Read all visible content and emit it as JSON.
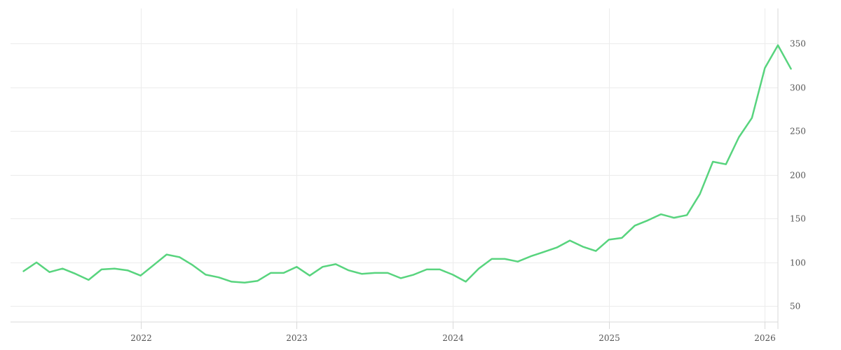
{
  "chart_data": {
    "type": "line",
    "title": "",
    "xlabel": "",
    "ylabel": "",
    "x_tick_labels": [
      "2022",
      "2023",
      "2024",
      "2025",
      "2026"
    ],
    "y_tick_labels": [
      "50",
      "100",
      "150",
      "200",
      "250",
      "300",
      "350"
    ],
    "y_ticks": [
      50,
      100,
      150,
      200,
      250,
      300,
      350
    ],
    "ylim": [
      32,
      390
    ],
    "xlim": [
      "2021-03",
      "2026-02"
    ],
    "grid": true,
    "y_axis_side": "right",
    "line_color": "#58d47e",
    "x": [
      "2021-04",
      "2021-05",
      "2021-06",
      "2021-07",
      "2021-08",
      "2021-09",
      "2021-10",
      "2021-11",
      "2021-12",
      "2022-01",
      "2022-02",
      "2022-03",
      "2022-04",
      "2022-05",
      "2022-06",
      "2022-07",
      "2022-08",
      "2022-09",
      "2022-10",
      "2022-11",
      "2022-12",
      "2023-01",
      "2023-02",
      "2023-03",
      "2023-04",
      "2023-05",
      "2023-06",
      "2023-07",
      "2023-08",
      "2023-09",
      "2023-10",
      "2023-11",
      "2023-12",
      "2024-01",
      "2024-02",
      "2024-03",
      "2024-04",
      "2024-05",
      "2024-06",
      "2024-07",
      "2024-08",
      "2024-09",
      "2024-10",
      "2024-11",
      "2024-12",
      "2025-01",
      "2025-02",
      "2025-03",
      "2025-04",
      "2025-05",
      "2025-06",
      "2025-07",
      "2025-08",
      "2025-09",
      "2025-10",
      "2025-11",
      "2025-12",
      "2026-01",
      "2026-02",
      "2026-03"
    ],
    "values": [
      90,
      100,
      89,
      93,
      87,
      80,
      92,
      93,
      91,
      85,
      97,
      109,
      106,
      97,
      86,
      83,
      78,
      77,
      79,
      88,
      88,
      95,
      85,
      95,
      98,
      91,
      87,
      88,
      88,
      82,
      86,
      92,
      92,
      86,
      78,
      93,
      104,
      104,
      101,
      107,
      112,
      117,
      125,
      118,
      113,
      126,
      128,
      142,
      148,
      155,
      151,
      154,
      178,
      215,
      212,
      243,
      265,
      322,
      348,
      321
    ]
  }
}
